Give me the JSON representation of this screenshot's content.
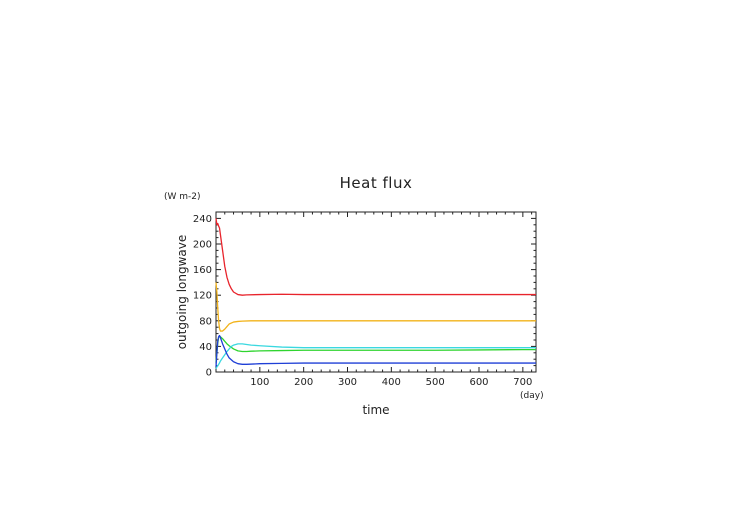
{
  "chart_data": {
    "type": "line",
    "title": "Heat flux",
    "xlabel": "time",
    "ylabel": "outgoing longwave",
    "xunit": "(day)",
    "yunit": "(W m-2)",
    "xlim": [
      0,
      730
    ],
    "ylim": [
      0,
      250
    ],
    "xticks": [
      100,
      200,
      300,
      400,
      500,
      600,
      700
    ],
    "yticks": [
      0,
      40,
      80,
      120,
      160,
      200,
      240
    ],
    "grid": false,
    "series": [
      {
        "color": "#e8242c",
        "x": [
          0,
          2,
          4,
          6,
          8,
          10,
          15,
          20,
          25,
          30,
          35,
          40,
          50,
          60,
          70,
          100,
          150,
          200,
          300,
          400,
          500,
          600,
          700,
          730
        ],
        "y": [
          240,
          230,
          232,
          228,
          225,
          215,
          190,
          165,
          148,
          137,
          130,
          125,
          121,
          120,
          120.5,
          121,
          121.5,
          121,
          121,
          121,
          121,
          121,
          121,
          121
        ]
      },
      {
        "color": "#f2b31a",
        "x": [
          0,
          2,
          4,
          6,
          8,
          10,
          15,
          20,
          25,
          30,
          40,
          50,
          60,
          80,
          100,
          200,
          300,
          400,
          500,
          600,
          700,
          730
        ],
        "y": [
          140,
          125,
          100,
          80,
          68,
          64,
          64,
          67,
          71,
          75,
          78,
          79,
          79.5,
          80,
          80,
          80,
          80,
          80,
          80,
          80,
          80,
          80
        ]
      },
      {
        "color": "#2fd42f",
        "x": [
          0,
          2,
          4,
          6,
          8,
          10,
          15,
          20,
          25,
          30,
          40,
          50,
          60,
          70,
          80,
          100,
          150,
          200,
          300,
          400,
          500,
          600,
          700,
          730
        ],
        "y": [
          15,
          30,
          45,
          54,
          56,
          55,
          52,
          48,
          44,
          41,
          36,
          33,
          32,
          32,
          32.5,
          33,
          33.5,
          34,
          34,
          34,
          34,
          34.5,
          35,
          35
        ]
      },
      {
        "color": "#3ad8e0",
        "x": [
          0,
          2,
          4,
          6,
          8,
          10,
          15,
          20,
          25,
          30,
          35,
          40,
          50,
          60,
          70,
          80,
          100,
          150,
          200,
          300,
          400,
          500,
          600,
          700,
          730
        ],
        "y": [
          5,
          8,
          10,
          12,
          14,
          17,
          22,
          27,
          32,
          36,
          40,
          42,
          44,
          44,
          43,
          42,
          41,
          39,
          38,
          38,
          38,
          38,
          38,
          38,
          38
        ]
      },
      {
        "color": "#1f3fd6",
        "x": [
          0,
          2,
          4,
          6,
          8,
          10,
          12,
          15,
          20,
          25,
          30,
          40,
          50,
          60,
          70,
          100,
          150,
          200,
          300,
          400,
          500,
          600,
          700,
          730
        ],
        "y": [
          8,
          30,
          48,
          55,
          57,
          54,
          50,
          44,
          36,
          28,
          22,
          16,
          13,
          12,
          12,
          13,
          13.5,
          14,
          14,
          14,
          14,
          14,
          14,
          14
        ]
      }
    ]
  }
}
